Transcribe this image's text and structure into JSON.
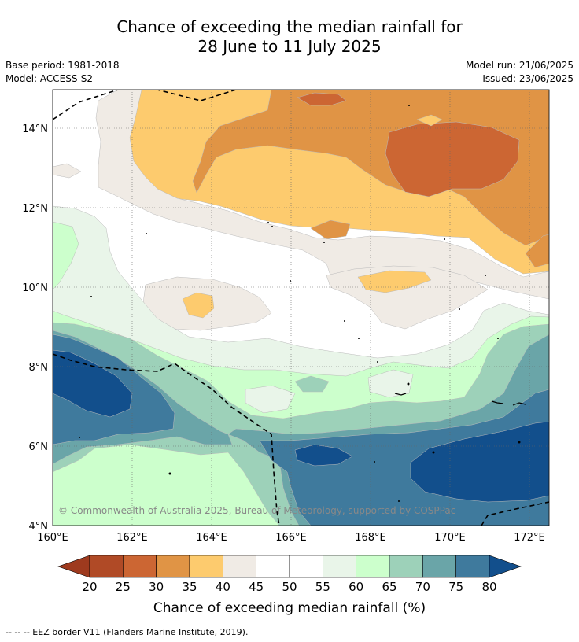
{
  "title": {
    "line1": "Chance of exceeding the median rainfall for",
    "line2": "28 June to 11 July 2025"
  },
  "meta": {
    "base_period": "Base period: 1981-2018",
    "model": "Model: ACCESS-S2",
    "model_run": "Model run: 21/06/2025",
    "issued": "Issued: 23/06/2025"
  },
  "map": {
    "lat_labels": [
      "14°N",
      "12°N",
      "10°N",
      "8°N",
      "6°N",
      "4°N"
    ],
    "lon_labels": [
      "160°E",
      "162°E",
      "164°E",
      "166°E",
      "168°E",
      "170°E",
      "172°E"
    ],
    "copyright": "© Commonwealth of Australia 2025, Bureau of Meteorology, supported by COSPPac"
  },
  "colorbar": {
    "ticks": [
      "20",
      "25",
      "30",
      "35",
      "40",
      "45",
      "50",
      "55",
      "60",
      "65",
      "70",
      "75",
      "80"
    ],
    "colors": {
      "below_20": "#9e3a1e",
      "20-25": "#b04a26",
      "25-30": "#cc6633",
      "30-35": "#e09445",
      "35-40": "#fdcb6e",
      "40-45": "#f0ebe5",
      "45-50": "#ffffff",
      "50-55": "#ffffff",
      "55-60": "#e9f5e9",
      "60-65": "#ccffcc",
      "65-70": "#9dd1b9",
      "70-75": "#6aa5a8",
      "75-80": "#3f7a9d",
      "above_80": "#124f8c"
    },
    "label": "Chance of exceeding median rainfall (%)"
  },
  "footer": "--  --  -- EEZ border V11 (Flanders Marine Institute, 2019)."
}
